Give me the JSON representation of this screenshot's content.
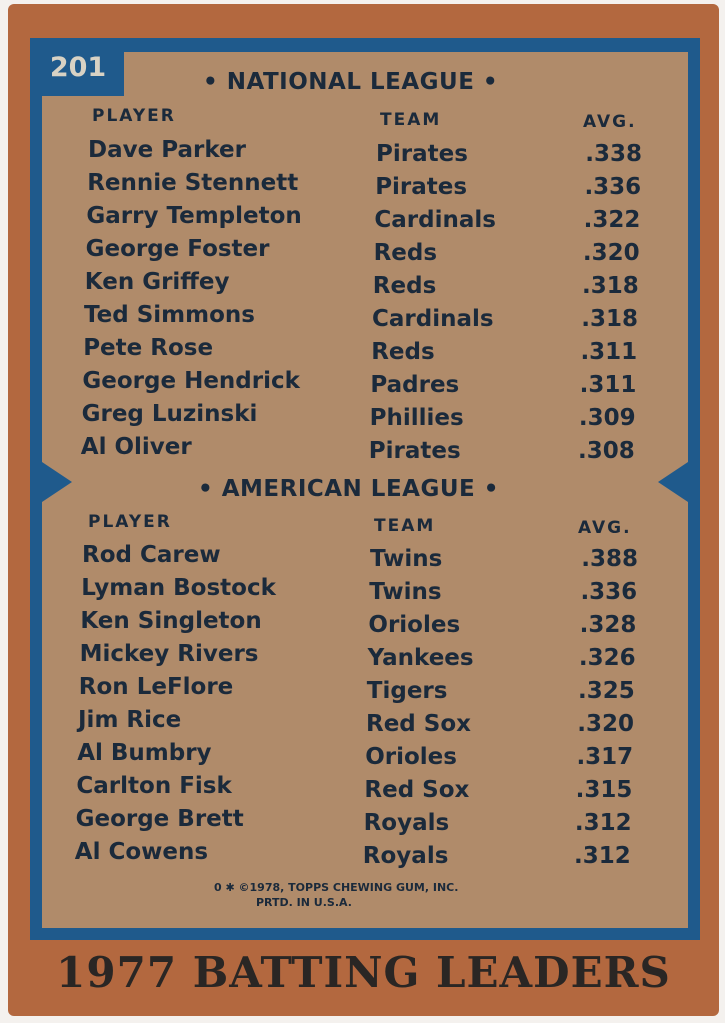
{
  "card_number": "201",
  "title": "1977 BATTING LEADERS",
  "colors": {
    "border": "#b3683f",
    "frame": "#1f5a8c",
    "background": "#b08b6a",
    "text": "#1b2a3b"
  },
  "columns": {
    "player": "PLAYER",
    "team": "TEAM",
    "avg": "AVG."
  },
  "national": {
    "header": "• NATIONAL LEAGUE •",
    "rows": [
      {
        "player": "Dave Parker",
        "team": "Pirates",
        "avg": ".338"
      },
      {
        "player": "Rennie Stennett",
        "team": "Pirates",
        "avg": ".336"
      },
      {
        "player": "Garry Templeton",
        "team": "Cardinals",
        "avg": ".322"
      },
      {
        "player": "George Foster",
        "team": "Reds",
        "avg": ".320"
      },
      {
        "player": "Ken Griffey",
        "team": "Reds",
        "avg": ".318"
      },
      {
        "player": "Ted Simmons",
        "team": "Cardinals",
        "avg": ".318"
      },
      {
        "player": "Pete Rose",
        "team": "Reds",
        "avg": ".311"
      },
      {
        "player": "George Hendrick",
        "team": "Padres",
        "avg": ".311"
      },
      {
        "player": "Greg Luzinski",
        "team": "Phillies",
        "avg": ".309"
      },
      {
        "player": "Al Oliver",
        "team": "Pirates",
        "avg": ".308"
      }
    ]
  },
  "american": {
    "header": "• AMERICAN LEAGUE •",
    "rows": [
      {
        "player": "Rod Carew",
        "team": "Twins",
        "avg": ".388"
      },
      {
        "player": "Lyman Bostock",
        "team": "Twins",
        "avg": ".336"
      },
      {
        "player": "Ken Singleton",
        "team": "Orioles",
        "avg": ".328"
      },
      {
        "player": "Mickey Rivers",
        "team": "Yankees",
        "avg": ".326"
      },
      {
        "player": "Ron LeFlore",
        "team": "Tigers",
        "avg": ".325"
      },
      {
        "player": "Jim Rice",
        "team": "Red Sox",
        "avg": ".320"
      },
      {
        "player": "Al Bumbry",
        "team": "Orioles",
        "avg": ".317"
      },
      {
        "player": "Carlton Fisk",
        "team": "Red Sox",
        "avg": ".315"
      },
      {
        "player": "George Brett",
        "team": "Royals",
        "avg": ".312"
      },
      {
        "player": "Al Cowens",
        "team": "Royals",
        "avg": ".312"
      }
    ]
  },
  "copyright": {
    "line1": "0 ✱ ©1978, TOPPS CHEWING GUM, INC.",
    "line2": "PRTD. IN U.S.A."
  }
}
